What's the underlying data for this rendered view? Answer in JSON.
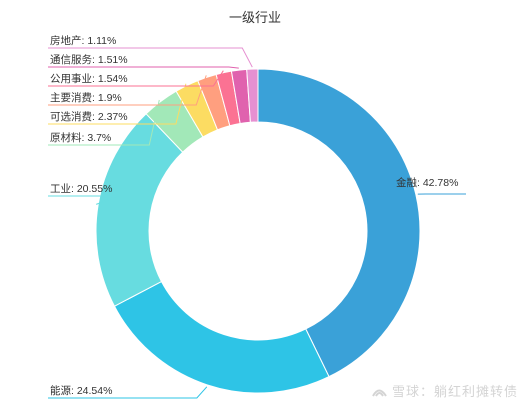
{
  "chart_data": {
    "type": "pie",
    "variant": "donut",
    "title": "一级行业",
    "slices": [
      {
        "label": "金融",
        "value": 42.78,
        "display": "42.78%",
        "color": "#3aa1d8"
      },
      {
        "label": "能源",
        "value": 24.54,
        "display": "24.54%",
        "color": "#2ec4e6"
      },
      {
        "label": "工业",
        "value": 20.55,
        "display": "20.55%",
        "color": "#67dce0"
      },
      {
        "label": "原材料",
        "value": 3.7,
        "display": "3.7%",
        "color": "#a2e8b8"
      },
      {
        "label": "可选消费",
        "value": 2.37,
        "display": "2.37%",
        "color": "#fcdc62"
      },
      {
        "label": "主要消费",
        "value": 1.9,
        "display": "1.9%",
        "color": "#ff9f7f"
      },
      {
        "label": "公用事业",
        "value": 1.54,
        "display": "1.54%",
        "color": "#fb7293"
      },
      {
        "label": "通信服务",
        "value": 1.51,
        "display": "1.51%",
        "color": "#e062ae"
      },
      {
        "label": "房地产",
        "value": 1.11,
        "display": "1.11%",
        "color": "#e690d1"
      }
    ]
  },
  "watermark": {
    "text": "雪球：躺红利摊转债"
  }
}
